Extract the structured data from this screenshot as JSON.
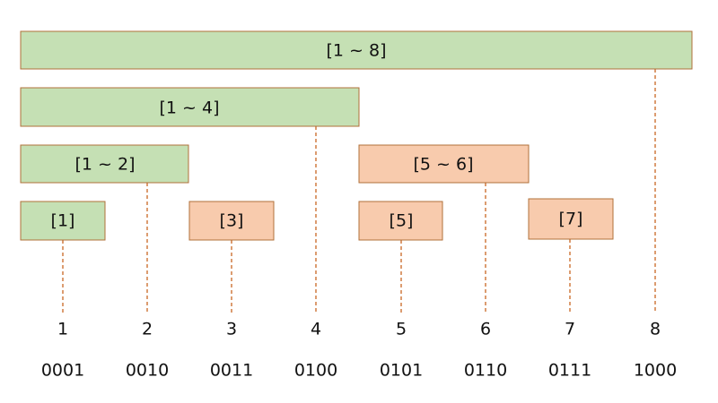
{
  "nodes": [
    {
      "label": "[1 ~ 8]"
    },
    {
      "label": "[1 ~ 4]"
    },
    {
      "label": "[1 ~ 2]"
    },
    {
      "label": "[5 ~ 6]"
    },
    {
      "label": "[1]"
    },
    {
      "label": "[3]"
    },
    {
      "label": "[5]"
    },
    {
      "label": "[7]"
    }
  ],
  "columns": [
    {
      "index": "1",
      "binary": "0001"
    },
    {
      "index": "2",
      "binary": "0010"
    },
    {
      "index": "3",
      "binary": "0011"
    },
    {
      "index": "4",
      "binary": "0100"
    },
    {
      "index": "5",
      "binary": "0101"
    },
    {
      "index": "6",
      "binary": "0110"
    },
    {
      "index": "7",
      "binary": "0111"
    },
    {
      "index": "8",
      "binary": "1000"
    }
  ]
}
